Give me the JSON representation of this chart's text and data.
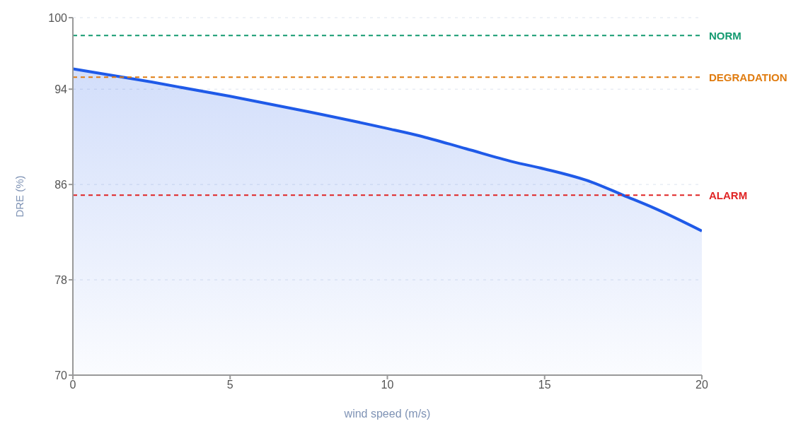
{
  "chart_data": {
    "type": "area",
    "xlabel": "wind speed (m/s)",
    "ylabel": "DRE (%)",
    "x": [
      0,
      2.5,
      5,
      7.5,
      10,
      11,
      12.5,
      14,
      15,
      16.5,
      17.5,
      18.5,
      20
    ],
    "series": [
      {
        "color": "#1f5ae8",
        "values": [
          95.7,
          94.6,
          93.4,
          92.1,
          90.7,
          90.1,
          89.0,
          87.9,
          87.3,
          86.2,
          85.1,
          84.0,
          82.1
        ]
      }
    ],
    "xlim": [
      0,
      20
    ],
    "xticks": [
      0,
      5,
      10,
      15,
      20
    ],
    "ylim": [
      70,
      100
    ],
    "yticks": [
      70,
      78,
      86,
      94,
      100
    ],
    "grid": "y",
    "legend": false,
    "marker": "none",
    "line_style": "solid",
    "ref_lines": [
      {
        "axis": "y",
        "value": 98.5,
        "label": "NORM",
        "color": "#139a70",
        "line_style": "dashed"
      },
      {
        "axis": "y",
        "value": 95,
        "label": "DEGRADATION",
        "color": "#e07c10",
        "line_style": "dashed"
      },
      {
        "axis": "y",
        "value": 85.1,
        "label": "ALARM",
        "color": "#e02424",
        "line_style": "dashed"
      }
    ]
  }
}
